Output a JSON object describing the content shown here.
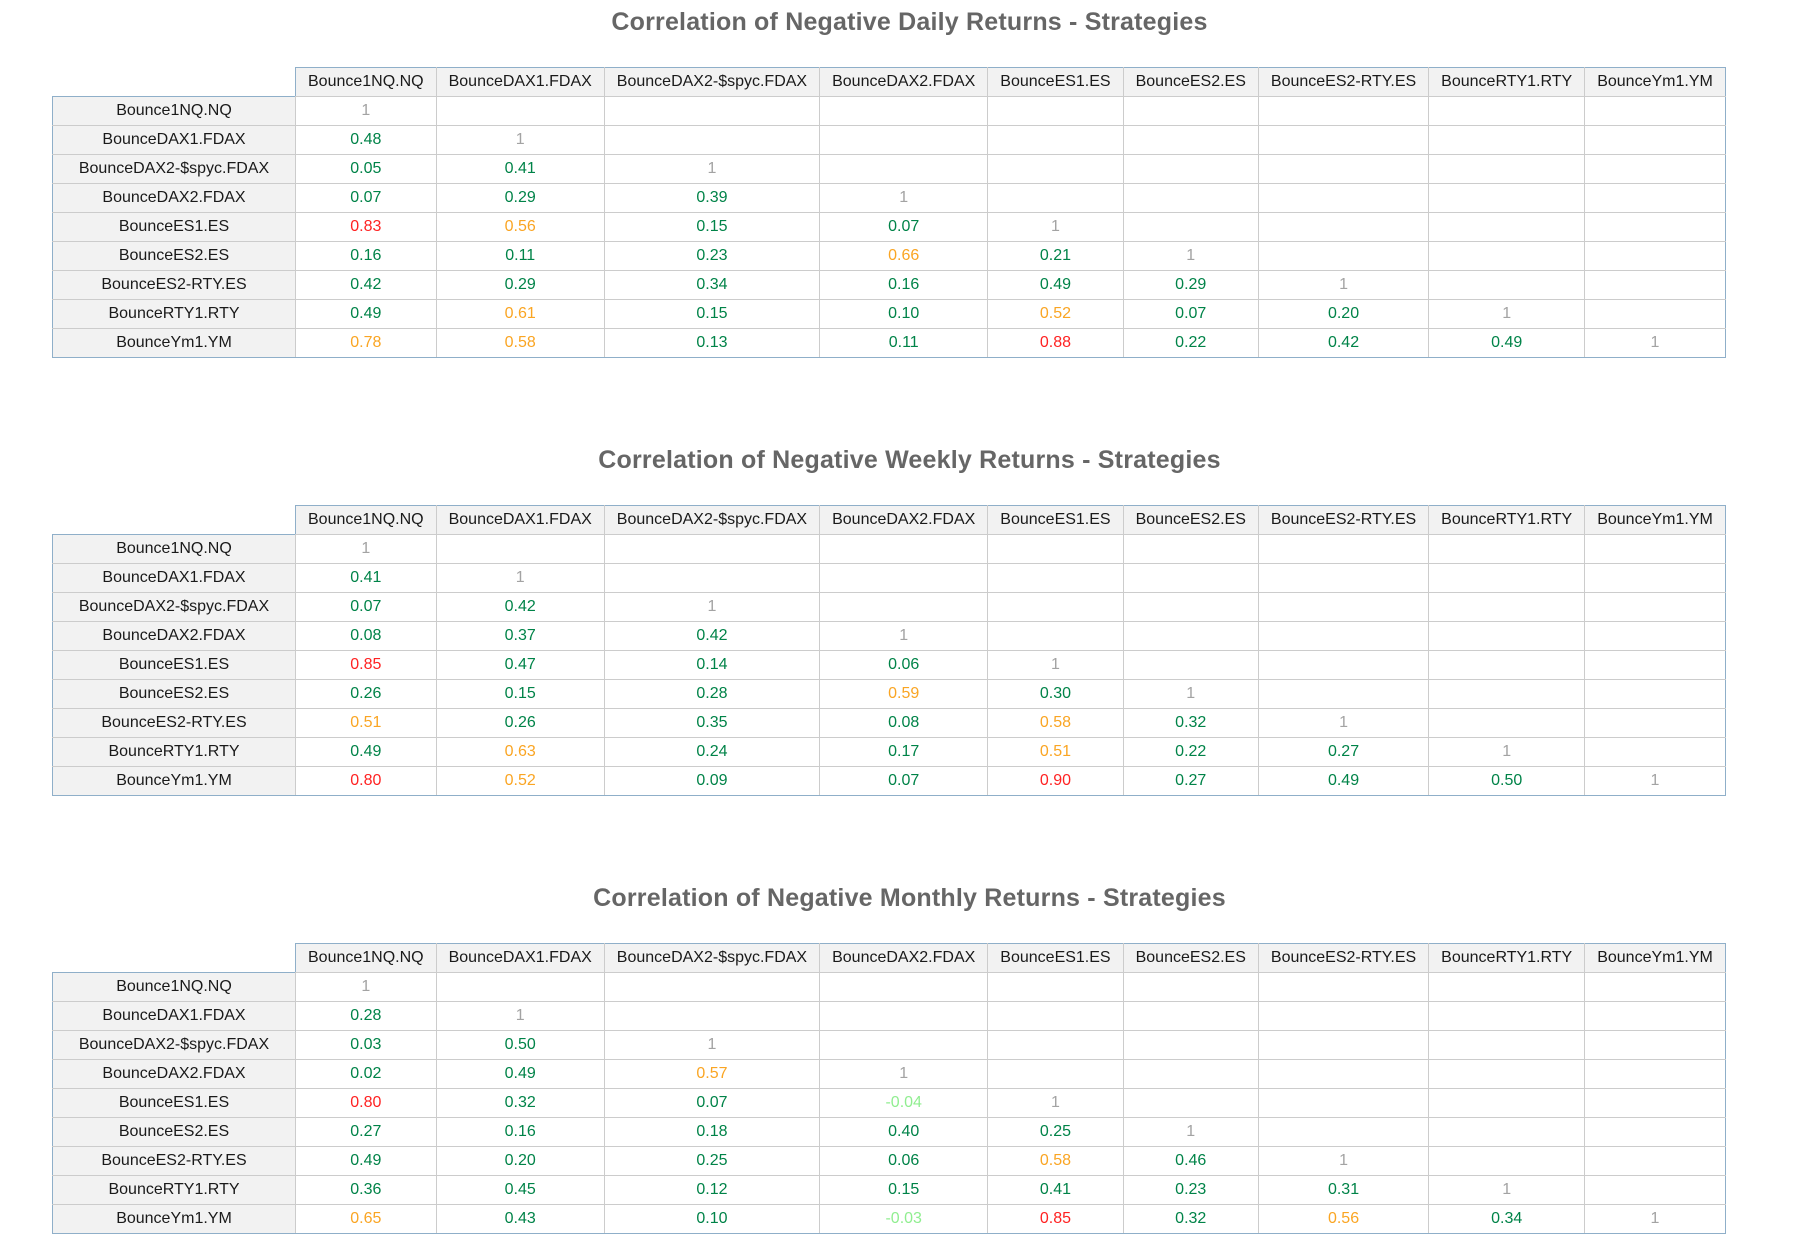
{
  "colors": {
    "title": "#666666",
    "header_bg": "#f2f2f2",
    "grid": "#cccccc",
    "outer": "#8fafc9",
    "diagonal": "#a3a3a3",
    "positive_low_green": "#008348",
    "positive_mid_orange": "#faa523",
    "positive_high_red": "#ff2222",
    "negative_light_green": "#90ee90"
  },
  "chart_data": [
    {
      "type": "table",
      "title": "Correlation of Negative Daily Returns - Strategies",
      "columns": [
        "Bounce1NQ.NQ",
        "BounceDAX1.FDAX",
        "BounceDAX2-$spyc.FDAX",
        "BounceDAX2.FDAX",
        "BounceES1.ES",
        "BounceES2.ES",
        "BounceES2-RTY.ES",
        "BounceRTY1.RTY",
        "BounceYm1.YM"
      ],
      "rows": [
        {
          "label": "Bounce1NQ.NQ",
          "values": [
            1
          ]
        },
        {
          "label": "BounceDAX1.FDAX",
          "values": [
            0.48,
            1
          ]
        },
        {
          "label": "BounceDAX2-$spyc.FDAX",
          "values": [
            0.05,
            0.41,
            1
          ]
        },
        {
          "label": "BounceDAX2.FDAX",
          "values": [
            0.07,
            0.29,
            0.39,
            1
          ]
        },
        {
          "label": "BounceES1.ES",
          "values": [
            0.83,
            0.56,
            0.15,
            0.07,
            1
          ]
        },
        {
          "label": "BounceES2.ES",
          "values": [
            0.16,
            0.11,
            0.23,
            0.66,
            0.21,
            1
          ]
        },
        {
          "label": "BounceES2-RTY.ES",
          "values": [
            0.42,
            0.29,
            0.34,
            0.16,
            0.49,
            0.29,
            1
          ]
        },
        {
          "label": "BounceRTY1.RTY",
          "values": [
            0.49,
            0.61,
            0.15,
            0.1,
            0.52,
            0.07,
            0.2,
            1
          ]
        },
        {
          "label": "BounceYm1.YM",
          "values": [
            0.78,
            0.58,
            0.13,
            0.11,
            0.88,
            0.22,
            0.42,
            0.49,
            1
          ]
        }
      ]
    },
    {
      "type": "table",
      "title": "Correlation of Negative Weekly Returns - Strategies",
      "columns": [
        "Bounce1NQ.NQ",
        "BounceDAX1.FDAX",
        "BounceDAX2-$spyc.FDAX",
        "BounceDAX2.FDAX",
        "BounceES1.ES",
        "BounceES2.ES",
        "BounceES2-RTY.ES",
        "BounceRTY1.RTY",
        "BounceYm1.YM"
      ],
      "rows": [
        {
          "label": "Bounce1NQ.NQ",
          "values": [
            1
          ]
        },
        {
          "label": "BounceDAX1.FDAX",
          "values": [
            0.41,
            1
          ]
        },
        {
          "label": "BounceDAX2-$spyc.FDAX",
          "values": [
            0.07,
            0.42,
            1
          ]
        },
        {
          "label": "BounceDAX2.FDAX",
          "values": [
            0.08,
            0.37,
            0.42,
            1
          ]
        },
        {
          "label": "BounceES1.ES",
          "values": [
            0.85,
            0.47,
            0.14,
            0.06,
            1
          ]
        },
        {
          "label": "BounceES2.ES",
          "values": [
            0.26,
            0.15,
            0.28,
            0.59,
            0.3,
            1
          ]
        },
        {
          "label": "BounceES2-RTY.ES",
          "values": [
            0.51,
            0.26,
            0.35,
            0.08,
            0.58,
            0.32,
            1
          ]
        },
        {
          "label": "BounceRTY1.RTY",
          "values": [
            0.49,
            0.63,
            0.24,
            0.17,
            0.51,
            0.22,
            0.27,
            1
          ]
        },
        {
          "label": "BounceYm1.YM",
          "values": [
            0.8,
            0.52,
            0.09,
            0.07,
            0.9,
            0.27,
            0.49,
            0.5,
            1
          ]
        }
      ]
    },
    {
      "type": "table",
      "title": "Correlation of Negative Monthly Returns - Strategies",
      "columns": [
        "Bounce1NQ.NQ",
        "BounceDAX1.FDAX",
        "BounceDAX2-$spyc.FDAX",
        "BounceDAX2.FDAX",
        "BounceES1.ES",
        "BounceES2.ES",
        "BounceES2-RTY.ES",
        "BounceRTY1.RTY",
        "BounceYm1.YM"
      ],
      "rows": [
        {
          "label": "Bounce1NQ.NQ",
          "values": [
            1
          ]
        },
        {
          "label": "BounceDAX1.FDAX",
          "values": [
            0.28,
            1
          ]
        },
        {
          "label": "BounceDAX2-$spyc.FDAX",
          "values": [
            0.03,
            0.5,
            1
          ]
        },
        {
          "label": "BounceDAX2.FDAX",
          "values": [
            0.02,
            0.49,
            0.57,
            1
          ]
        },
        {
          "label": "BounceES1.ES",
          "values": [
            0.8,
            0.32,
            0.07,
            -0.04,
            1
          ]
        },
        {
          "label": "BounceES2.ES",
          "values": [
            0.27,
            0.16,
            0.18,
            0.4,
            0.25,
            1
          ]
        },
        {
          "label": "BounceES2-RTY.ES",
          "values": [
            0.49,
            0.2,
            0.25,
            0.06,
            0.58,
            0.46,
            1
          ]
        },
        {
          "label": "BounceRTY1.RTY",
          "values": [
            0.36,
            0.45,
            0.12,
            0.15,
            0.41,
            0.23,
            0.31,
            1
          ]
        },
        {
          "label": "BounceYm1.YM",
          "values": [
            0.65,
            0.43,
            0.1,
            -0.03,
            0.85,
            0.32,
            0.56,
            0.34,
            1
          ]
        }
      ]
    }
  ]
}
